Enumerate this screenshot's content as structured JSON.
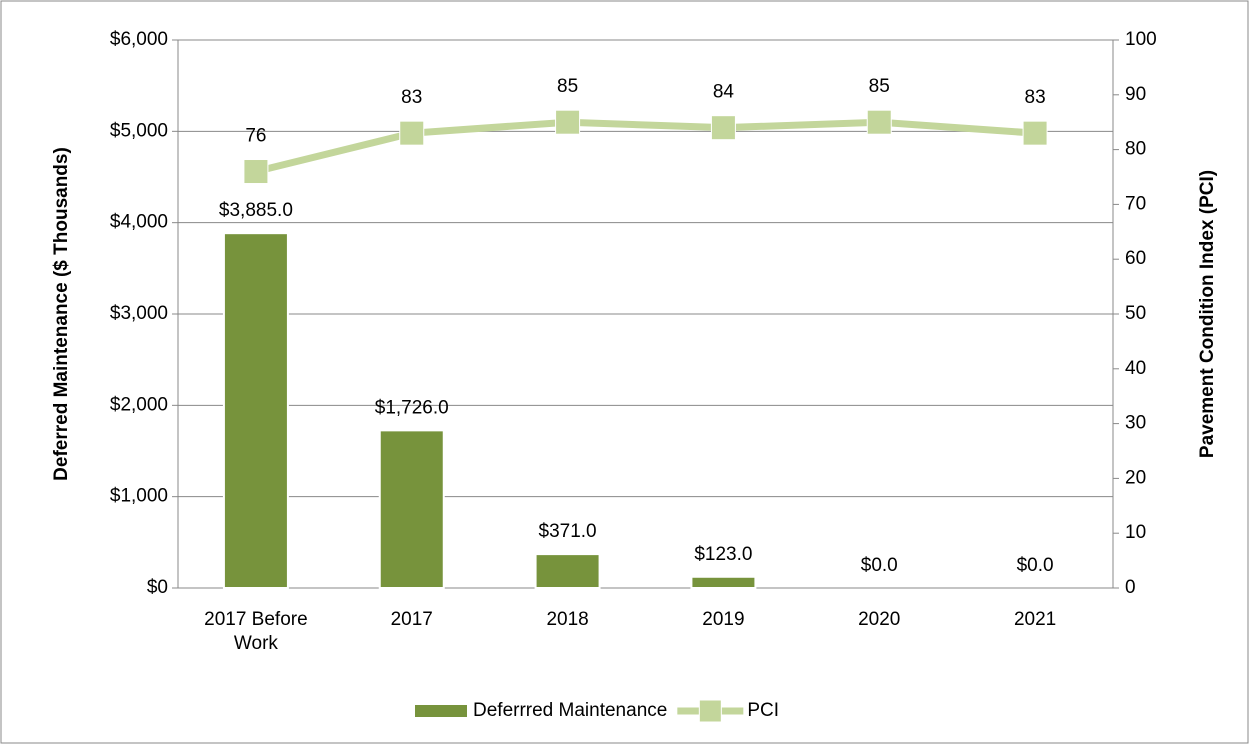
{
  "chart_data": {
    "type": "bar_line",
    "categories": [
      "2017 Before Work",
      "2017",
      "2018",
      "2019",
      "2020",
      "2021"
    ],
    "series": [
      {
        "name": "Deferrred Maintenance",
        "type": "bar",
        "color": "#77933c",
        "values": [
          3885,
          1726,
          371,
          123,
          0,
          0
        ],
        "value_labels": [
          "$3,885.0",
          "$1,726.0",
          "$371.0",
          "$123.0",
          "$0.0",
          "$0.0"
        ]
      },
      {
        "name": "PCI",
        "type": "line",
        "axis": "y2",
        "color": "#c3d69b",
        "values": [
          76,
          83,
          85,
          84,
          85,
          83
        ]
      }
    ],
    "ylabel": "Deferred Maintenance ($ Thousands)",
    "y2label": "Pavement Condition Index (PCI)",
    "ylim": [
      0,
      6000
    ],
    "yticks": [
      {
        "value": 0,
        "label": "$0"
      },
      {
        "value": 1000,
        "label": "$1,000"
      },
      {
        "value": 2000,
        "label": "$2,000"
      },
      {
        "value": 3000,
        "label": "$3,000"
      },
      {
        "value": 4000,
        "label": "$4,000"
      },
      {
        "value": 5000,
        "label": "$5,000"
      },
      {
        "value": 6000,
        "label": "$6,000"
      }
    ],
    "y2lim": [
      0,
      100
    ],
    "y2ticks": [
      0,
      10,
      20,
      30,
      40,
      50,
      60,
      70,
      80,
      90,
      100
    ],
    "grid": true,
    "legend": "bottom"
  }
}
